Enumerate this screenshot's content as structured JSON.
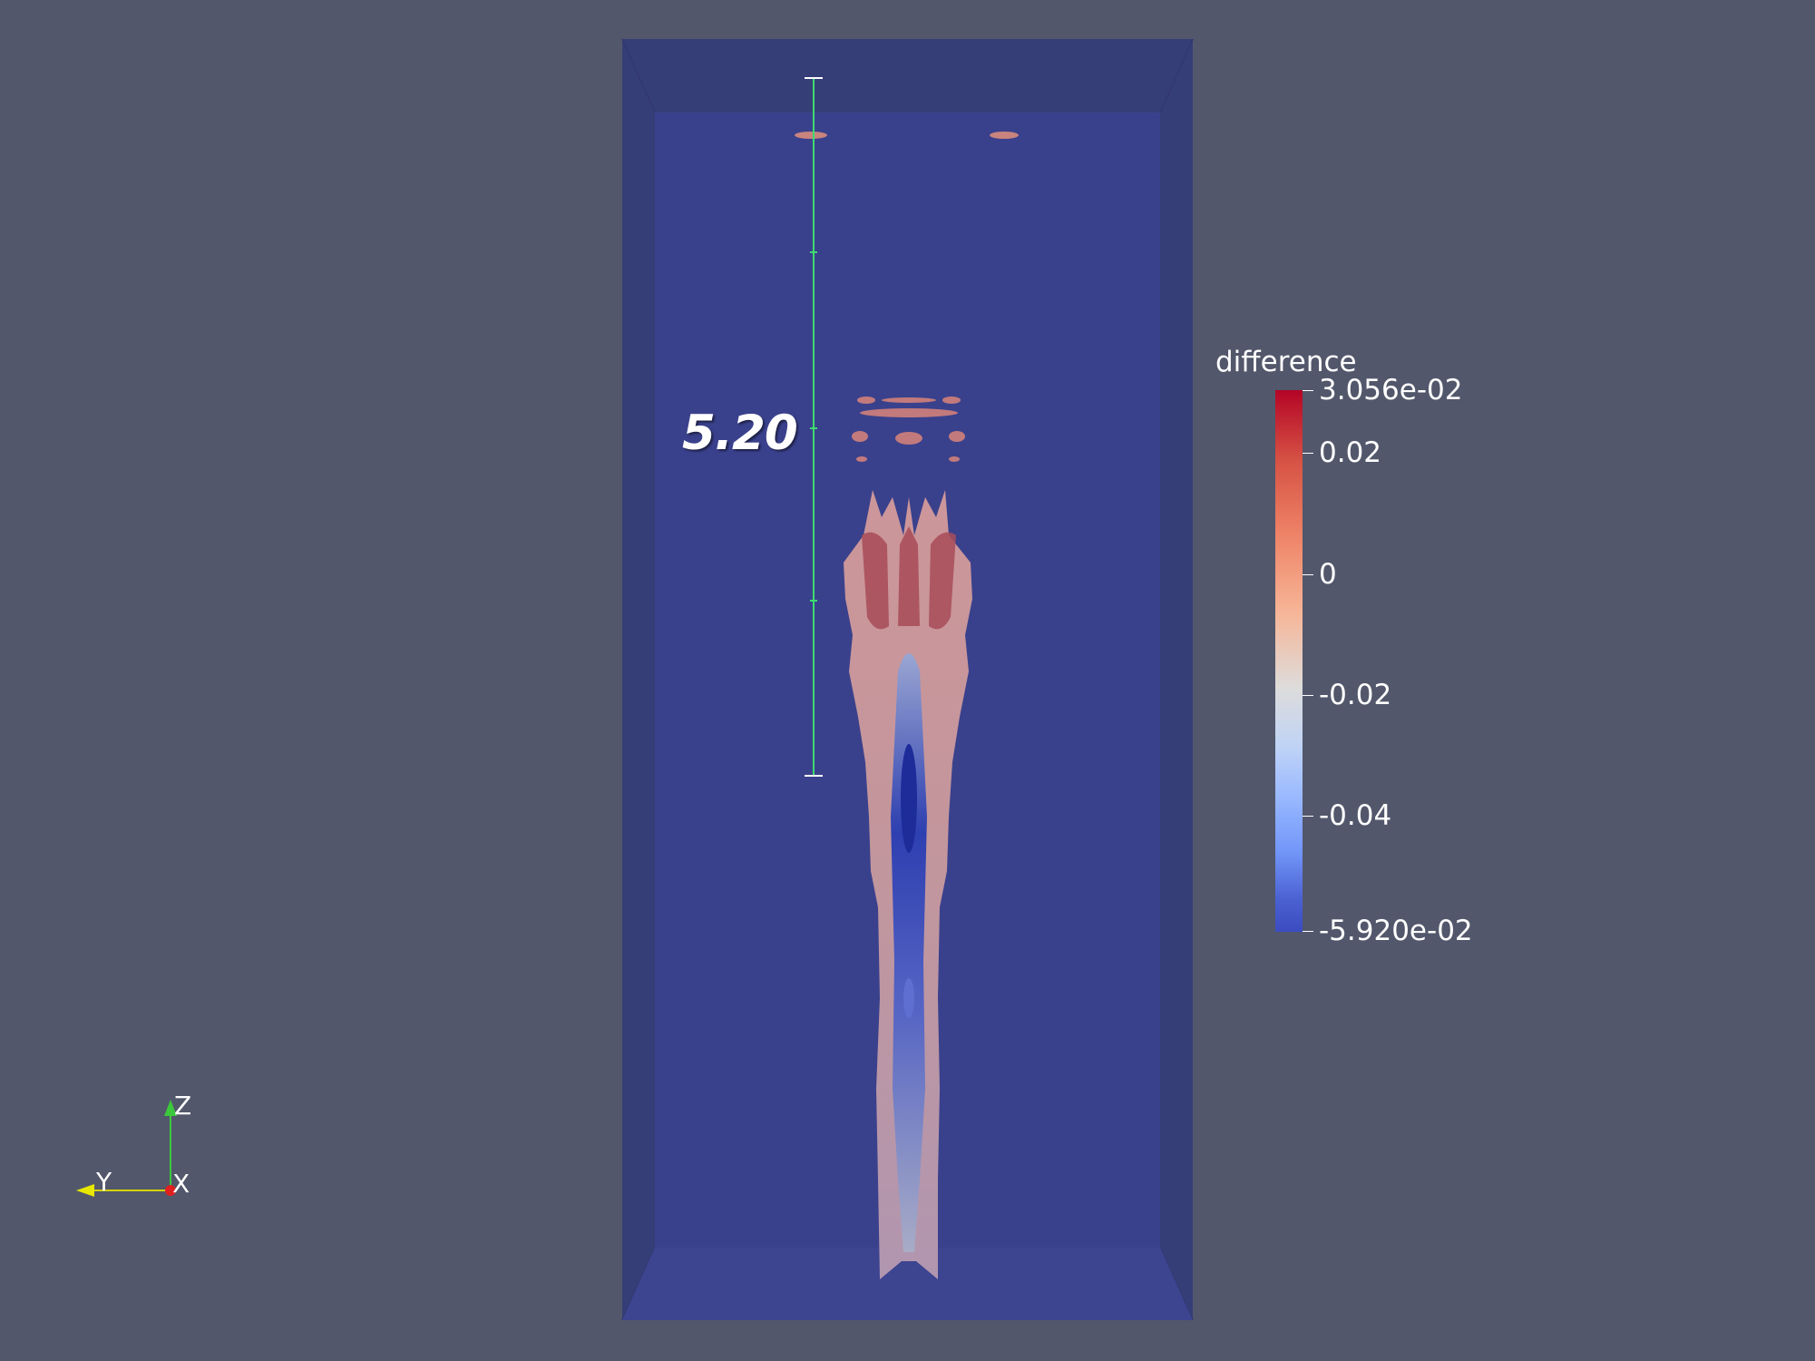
{
  "scene": {
    "ruler_value": "5.20",
    "axes": {
      "x": "X",
      "y": "Y",
      "z": "Z"
    },
    "colors": {
      "background": "#52576b",
      "box_outer": "#363e78",
      "box_inner": "#3a418c",
      "ruler": "#3cdc6e"
    }
  },
  "legend": {
    "title": "difference",
    "max_label": "3.056e-02",
    "min_label": "-5.920e-02",
    "labels": [
      "0.02",
      "0",
      "-0.02",
      "-0.04"
    ],
    "colormap": "Cool to Warm",
    "range": [
      -0.0592,
      0.03056
    ]
  }
}
